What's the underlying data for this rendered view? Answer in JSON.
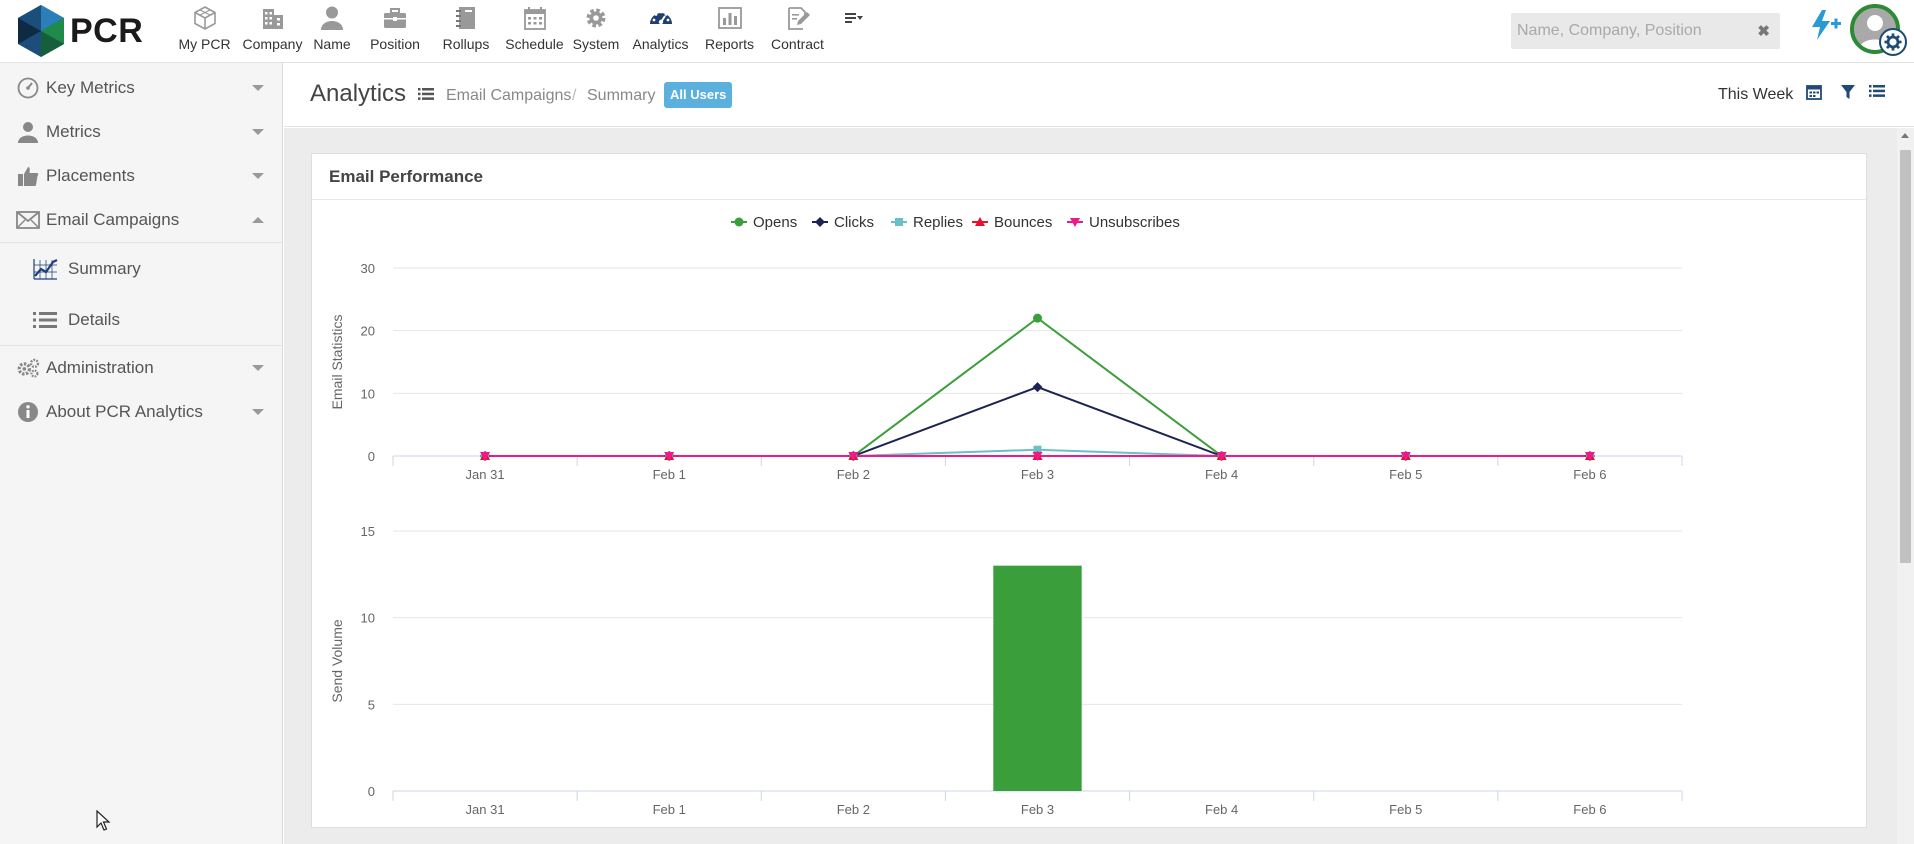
{
  "brand": {
    "name": "PCR"
  },
  "nav": [
    {
      "key": "mypcr",
      "label": "My PCR",
      "icon": "cube-icon"
    },
    {
      "key": "company",
      "label": "Company",
      "icon": "building-icon"
    },
    {
      "key": "name",
      "label": "Name",
      "icon": "person-icon"
    },
    {
      "key": "position",
      "label": "Position",
      "icon": "briefcase-icon"
    },
    {
      "key": "rollups",
      "label": "Rollups",
      "icon": "notebook-icon"
    },
    {
      "key": "schedule",
      "label": "Schedule",
      "icon": "calendar-icon"
    },
    {
      "key": "system",
      "label": "System",
      "icon": "gear-icon"
    },
    {
      "key": "analytics",
      "label": "Analytics",
      "icon": "dashboard-icon"
    },
    {
      "key": "reports",
      "label": "Reports",
      "icon": "bar-report-icon"
    },
    {
      "key": "contract",
      "label": "Contract",
      "icon": "contract-edit-icon"
    }
  ],
  "search": {
    "placeholder": "Name, Company, Position",
    "value": ""
  },
  "sidebar": {
    "items": [
      {
        "label": "Key Metrics",
        "icon": "gauge-icon",
        "expanded": false
      },
      {
        "label": "Metrics",
        "icon": "person-icon",
        "expanded": false
      },
      {
        "label": "Placements",
        "icon": "thumbs-up-icon",
        "expanded": false
      },
      {
        "label": "Email Campaigns",
        "icon": "envelope-icon",
        "expanded": true
      },
      {
        "label": "Administration",
        "icon": "gears-icon",
        "expanded": false
      },
      {
        "label": "About PCR Analytics",
        "icon": "info-icon",
        "expanded": false
      }
    ],
    "subitems": [
      {
        "label": "Summary",
        "icon": "chart-grid-icon"
      },
      {
        "label": "Details",
        "icon": "list-icon"
      }
    ]
  },
  "header": {
    "title": "Analytics",
    "breadcrumb": [
      "Email Campaigns",
      "Summary"
    ],
    "separator": "/",
    "badge": "All Users",
    "period": "This Week"
  },
  "panel": {
    "title": "Email Performance"
  },
  "colors": {
    "opens": "#3a9e3a",
    "clicks": "#1b2452",
    "replies": "#6bbfc7",
    "bounces": "#e8112d",
    "unsubscribes": "#ee1a8c",
    "bar": "#3a9e3a",
    "badge": "#5bb0de",
    "avatar_ring": "#2d8a34",
    "bolt": "#2a9ad6"
  },
  "chart_data": [
    {
      "type": "line",
      "categories": [
        "Jan 31",
        "Feb 1",
        "Feb 2",
        "Feb 3",
        "Feb 4",
        "Feb 5",
        "Feb 6"
      ],
      "ylabel": "Email Statistics",
      "ylim": [
        0,
        30
      ],
      "yticks": [
        0,
        10,
        20,
        30
      ],
      "legend_position": "top-center",
      "grid": true,
      "series": [
        {
          "name": "Opens",
          "marker": "circle",
          "values": [
            0,
            0,
            0,
            22,
            0,
            0,
            0
          ]
        },
        {
          "name": "Clicks",
          "marker": "diamond",
          "values": [
            0,
            0,
            0,
            11,
            0,
            0,
            0
          ]
        },
        {
          "name": "Replies",
          "marker": "square",
          "values": [
            0,
            0,
            0,
            1,
            0,
            0,
            0
          ]
        },
        {
          "name": "Bounces",
          "marker": "triangle",
          "values": [
            0,
            0,
            0,
            0,
            0,
            0,
            0
          ]
        },
        {
          "name": "Unsubscribes",
          "marker": "triangle-down",
          "values": [
            0,
            0,
            0,
            0,
            0,
            0,
            0
          ]
        }
      ]
    },
    {
      "type": "bar",
      "categories": [
        "Jan 31",
        "Feb 1",
        "Feb 2",
        "Feb 3",
        "Feb 4",
        "Feb 5",
        "Feb 6"
      ],
      "ylabel": "Send Volume",
      "ylim": [
        0,
        15
      ],
      "yticks": [
        0,
        5,
        10,
        15
      ],
      "grid": true,
      "values": [
        0,
        0,
        0,
        13,
        0,
        0,
        0
      ]
    }
  ]
}
